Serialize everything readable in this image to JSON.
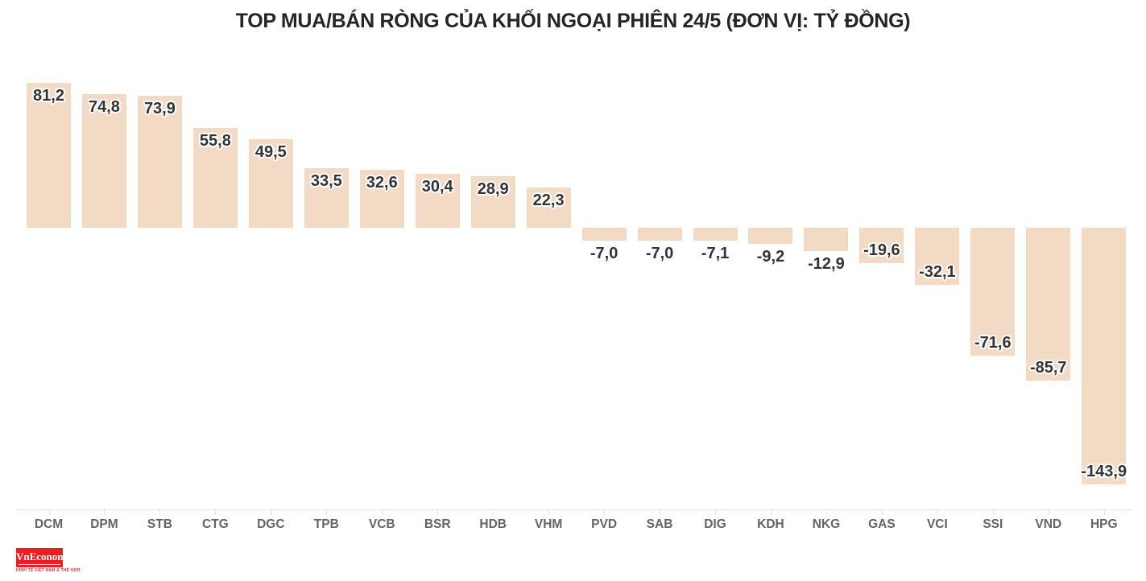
{
  "chart_data": {
    "type": "bar",
    "title": "TOP MUA/BÁN RÒNG CỦA KHỐI NGOẠI PHIÊN 24/5 (ĐƠN VỊ: TỶ ĐỒNG)",
    "categories": [
      "DCM",
      "DPM",
      "STB",
      "CTG",
      "DGC",
      "TPB",
      "VCB",
      "BSR",
      "HDB",
      "VHM",
      "PVD",
      "SAB",
      "DIG",
      "KDH",
      "NKG",
      "GAS",
      "VCI",
      "SSI",
      "VND",
      "HPG"
    ],
    "values": [
      81.2,
      74.8,
      73.9,
      55.8,
      49.5,
      33.5,
      32.6,
      30.4,
      28.9,
      22.3,
      -7.0,
      -7.0,
      -7.1,
      -9.2,
      -12.9,
      -19.6,
      -32.1,
      -71.6,
      -85.7,
      -143.9
    ],
    "value_labels": [
      "81,2",
      "74,8",
      "73,9",
      "55,8",
      "49,5",
      "33,5",
      "32,6",
      "30,4",
      "28,9",
      "22,3",
      "-7,0",
      "-7,0",
      "-7,1",
      "-9,2",
      "-12,9",
      "-19,6",
      "-32,1",
      "-71,6",
      "-85,7",
      "-143,9"
    ],
    "xlabel": "",
    "ylabel": "",
    "ylim": [
      -160,
      95
    ],
    "grid": false,
    "legend": "none",
    "baseline_value": 0
  },
  "colors": {
    "bar_fill": "#f3dac5",
    "value_label": "#333333",
    "tick_label": "#646464",
    "axis_line": "#e4e4e4",
    "title": "#252525",
    "logo_red": "#ee1c25"
  },
  "logo": {
    "text": "VnEconomy",
    "tagline": "KINH TẾ VIỆT NAM & THẾ GIỚI"
  }
}
